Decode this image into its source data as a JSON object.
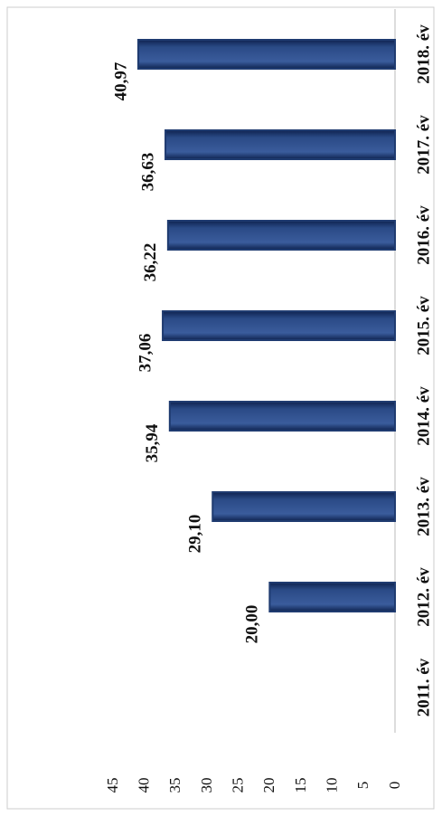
{
  "chart_data": {
    "type": "bar",
    "categories": [
      "2011. év",
      "2012. év",
      "2013. év",
      "2014. év",
      "2015. év",
      "2016. év",
      "2017. év",
      "2018. év"
    ],
    "values": [
      null,
      20.0,
      29.1,
      35.94,
      37.06,
      36.22,
      36.63,
      40.97
    ],
    "value_labels": [
      null,
      "20,00",
      "29,10",
      "35,94",
      "37,06",
      "36,22",
      "36,63",
      "40,97"
    ],
    "color": "#1f3b70",
    "ylim": [
      0,
      45
    ],
    "yticks": [
      0,
      5,
      10,
      15,
      20,
      25,
      30,
      35,
      40,
      45
    ],
    "grid": false
  }
}
